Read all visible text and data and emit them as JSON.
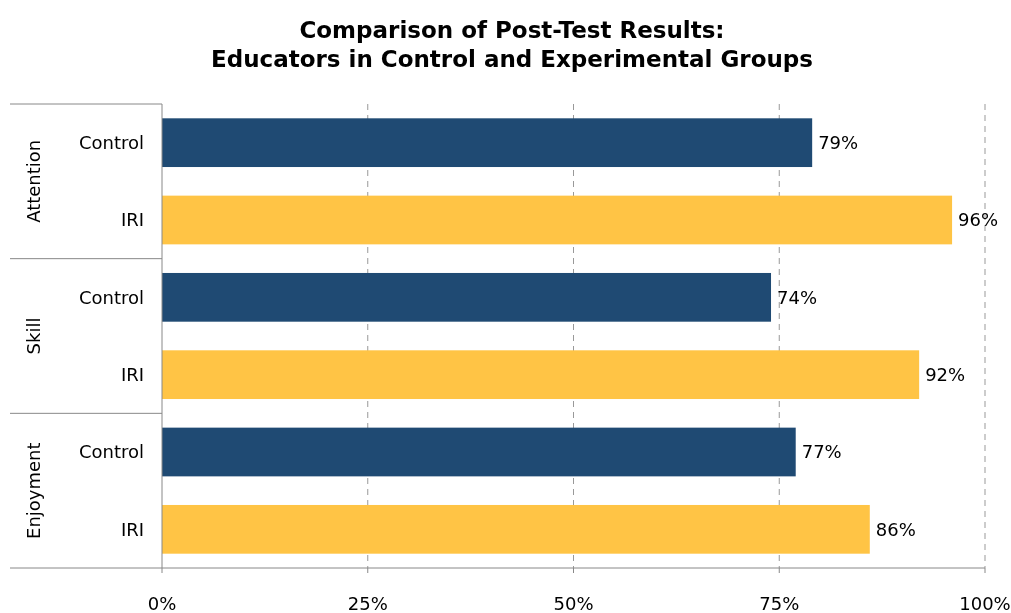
{
  "chart_data": {
    "type": "bar",
    "orientation": "horizontal",
    "title": "Comparison of Post-Test Results:\nEducators in Control and Experimental Groups",
    "categories": [
      "Control",
      "IRI",
      "Control",
      "IRI",
      "Control",
      "IRI"
    ],
    "values": [
      79,
      96,
      74,
      92,
      77,
      86
    ],
    "colors": [
      "#1f4a73",
      "#ffc445",
      "#1f4a73",
      "#ffc445",
      "#1f4a73",
      "#ffc445"
    ],
    "value_labels": [
      "79%",
      "96%",
      "74%",
      "92%",
      "77%",
      "86%"
    ],
    "annotations": [
      "Attention",
      "Skill",
      "Enjoyment"
    ],
    "xlim": [
      0,
      100
    ],
    "xticks": [
      {
        "value": 0,
        "label": "0%"
      },
      {
        "value": 25,
        "label": "25%"
      },
      {
        "value": 50,
        "label": "50%"
      },
      {
        "value": 75,
        "label": "75%"
      },
      {
        "value": 100,
        "label": "100%"
      }
    ],
    "grid": "x"
  }
}
